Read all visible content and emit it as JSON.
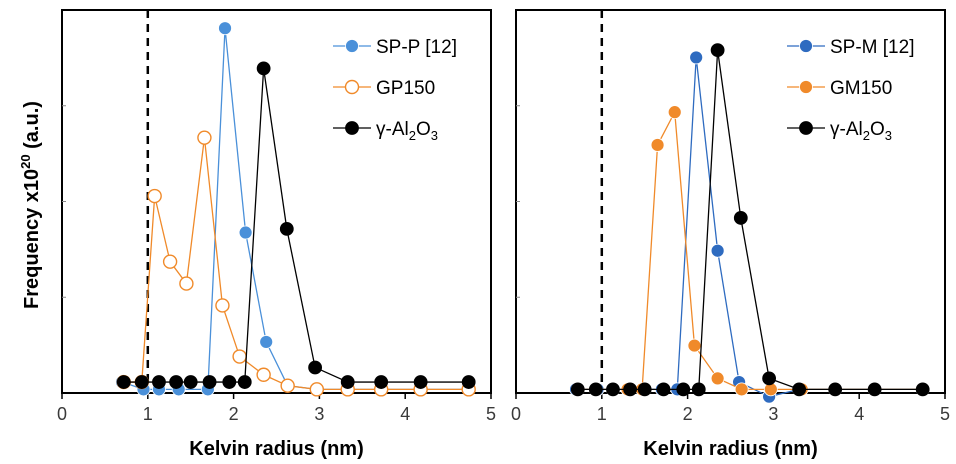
{
  "y_axis_label": "Frequency x10",
  "y_axis_exp": "20",
  "y_axis_unit": " (a.u.)",
  "colors": {
    "blue_light": "#4a90d9",
    "blue_dark": "#2e6bc0",
    "orange": "#f08a2a",
    "black": "#000000"
  },
  "chart_data": [
    {
      "type": "line",
      "xlabel": "Kelvin radius (nm)",
      "ylabel": "Frequency x10^20 (a.u.)",
      "xlim": [
        0,
        5
      ],
      "ylim": [
        0,
        1.05
      ],
      "xticks": [
        "0",
        "1",
        "2",
        "3",
        "4",
        "5"
      ],
      "reference_line_x": 1,
      "legend_position": "top-right",
      "series": [
        {
          "name": "SP-P [12]",
          "legend_text": "SP-P [12]",
          "color": "#4a90d9",
          "marker": "filled",
          "x": [
            0.7,
            0.95,
            1.13,
            1.36,
            1.7,
            1.9,
            2.14,
            2.38,
            2.63,
            2.97,
            3.33,
            3.72,
            4.18,
            4.74
          ],
          "y": [
            0.03,
            0.01,
            0.01,
            0.01,
            0.01,
            1.0,
            0.44,
            0.14,
            0.02,
            0.01,
            0.01,
            0.01,
            0.01,
            0.01
          ]
        },
        {
          "name": "GP150",
          "legend_text": "GP150",
          "color": "#f08a2a",
          "marker": "open",
          "x": [
            0.72,
            0.93,
            1.08,
            1.26,
            1.45,
            1.66,
            1.87,
            2.07,
            2.35,
            2.63,
            2.97,
            3.33,
            3.72,
            4.18,
            4.74
          ],
          "y": [
            0.03,
            0.03,
            0.54,
            0.36,
            0.3,
            0.7,
            0.24,
            0.1,
            0.05,
            0.02,
            0.01,
            0.01,
            0.01,
            0.01,
            0.01
          ]
        },
        {
          "name": "γ-Al2O3",
          "legend_text": "γ-Al",
          "legend_sub1": "2",
          "legend_mid": "O",
          "legend_sub2": "3",
          "color": "#000000",
          "marker": "filled",
          "x": [
            0.72,
            0.93,
            1.13,
            1.33,
            1.5,
            1.72,
            1.95,
            2.13,
            2.35,
            2.62,
            2.95,
            3.33,
            3.72,
            4.18,
            4.74
          ],
          "y": [
            0.03,
            0.03,
            0.03,
            0.03,
            0.03,
            0.03,
            0.03,
            0.03,
            0.89,
            0.45,
            0.07,
            0.03,
            0.03,
            0.03,
            0.03
          ]
        }
      ]
    },
    {
      "type": "line",
      "xlabel": "Kelvin radius (nm)",
      "ylabel": "",
      "xlim": [
        0,
        5
      ],
      "ylim": [
        0,
        1.05
      ],
      "xticks": [
        "0",
        "1",
        "2",
        "3",
        "4",
        "5"
      ],
      "reference_line_x": 1,
      "legend_position": "top-right",
      "series": [
        {
          "name": "SP-M [12]",
          "legend_text": "SP-M [12]",
          "color": "#2e6bc0",
          "marker": "filled",
          "x": [
            0.7,
            0.95,
            1.13,
            1.3,
            1.5,
            1.7,
            1.88,
            2.1,
            2.35,
            2.6,
            2.95,
            3.3,
            3.72,
            4.18,
            4.74
          ],
          "y": [
            0.01,
            0.01,
            0.01,
            0.01,
            0.01,
            0.01,
            0.01,
            0.92,
            0.39,
            0.03,
            -0.01,
            0.01,
            0.01,
            0.01,
            0.01
          ]
        },
        {
          "name": "GM150",
          "legend_text": "GM150",
          "color": "#f08a2a",
          "marker": "filled",
          "x": [
            0.72,
            0.93,
            1.13,
            1.3,
            1.47,
            1.65,
            1.85,
            2.08,
            2.35,
            2.63,
            2.97,
            3.33,
            3.72,
            4.18,
            4.74
          ],
          "y": [
            0.01,
            0.01,
            0.01,
            0.01,
            0.01,
            0.68,
            0.77,
            0.13,
            0.04,
            0.01,
            0.01,
            0.01,
            0.01,
            0.01,
            0.01
          ]
        },
        {
          "name": "γ-Al2O3",
          "legend_text": "γ-Al",
          "legend_sub1": "2",
          "legend_mid": "O",
          "legend_sub2": "3",
          "color": "#000000",
          "marker": "filled",
          "x": [
            0.72,
            0.93,
            1.13,
            1.33,
            1.5,
            1.72,
            1.95,
            2.13,
            2.35,
            2.62,
            2.95,
            3.3,
            3.72,
            4.18,
            4.74
          ],
          "y": [
            0.01,
            0.01,
            0.01,
            0.01,
            0.01,
            0.01,
            0.01,
            0.01,
            0.94,
            0.48,
            0.04,
            0.01,
            0.01,
            0.01,
            0.01
          ]
        }
      ]
    }
  ]
}
